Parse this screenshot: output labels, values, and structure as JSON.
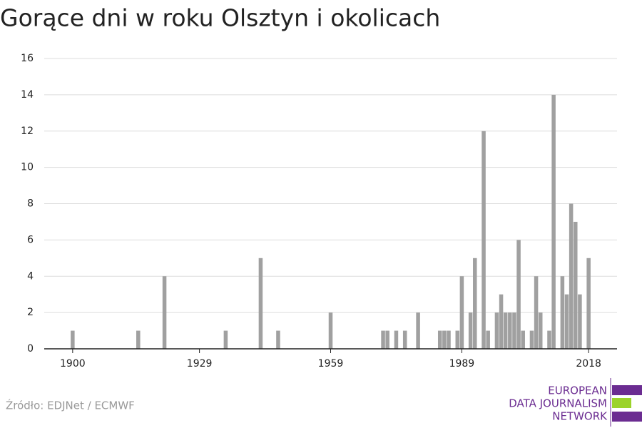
{
  "chart_data": {
    "type": "bar",
    "title": "Gorące dni w roku Olsztyn i okolicach",
    "x": [
      1900,
      1915,
      1921,
      1935,
      1943,
      1947,
      1959,
      1971,
      1972,
      1974,
      1976,
      1979,
      1984,
      1985,
      1986,
      1988,
      1989,
      1991,
      1992,
      1994,
      1995,
      1997,
      1998,
      1999,
      2000,
      2001,
      2002,
      2003,
      2005,
      2006,
      2007,
      2009,
      2010,
      2012,
      2013,
      2014,
      2015,
      2016,
      2018
    ],
    "values": [
      1,
      1,
      4,
      1,
      5,
      1,
      2,
      1,
      1,
      1,
      1,
      2,
      1,
      1,
      1,
      1,
      4,
      2,
      5,
      12,
      1,
      2,
      3,
      2,
      2,
      2,
      6,
      1,
      1,
      4,
      2,
      1,
      14,
      4,
      3,
      8,
      7,
      3,
      5
    ],
    "color": "#a0a0a0",
    "xlim": [
      1893.5,
      2024.5
    ],
    "xticks": [
      1900,
      1929,
      1959,
      1989,
      2018
    ],
    "ylim": [
      0,
      16
    ],
    "yticks": [
      0,
      2,
      4,
      6,
      8,
      10,
      12,
      14,
      16
    ],
    "grid": true
  },
  "source": "Źródło: EDJNet / ECMWF",
  "logo": [
    "EUROPEAN",
    "DATA JOURNALISM",
    "NETWORK"
  ]
}
